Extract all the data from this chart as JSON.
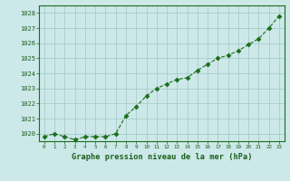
{
  "x": [
    0,
    1,
    2,
    3,
    4,
    5,
    6,
    7,
    8,
    9,
    10,
    11,
    12,
    13,
    14,
    15,
    16,
    17,
    18,
    19,
    20,
    21,
    22,
    23
  ],
  "y": [
    1019.8,
    1020.0,
    1019.8,
    1019.6,
    1019.8,
    1019.8,
    1019.8,
    1020.0,
    1021.2,
    1021.8,
    1022.5,
    1023.0,
    1023.3,
    1023.6,
    1023.7,
    1024.2,
    1024.6,
    1025.0,
    1025.2,
    1025.5,
    1025.9,
    1026.3,
    1027.0,
    1027.8
  ],
  "ylim": [
    1019.5,
    1028.5
  ],
  "yticks": [
    1020,
    1021,
    1022,
    1023,
    1024,
    1025,
    1026,
    1027,
    1028
  ],
  "xticks": [
    0,
    1,
    2,
    3,
    4,
    5,
    6,
    7,
    8,
    9,
    10,
    11,
    12,
    13,
    14,
    15,
    16,
    17,
    18,
    19,
    20,
    21,
    22,
    23
  ],
  "xlabel": "Graphe pression niveau de la mer (hPa)",
  "line_color": "#1a6e1a",
  "marker": "D",
  "marker_size": 2.5,
  "bg_color": "#cce8e8",
  "grid_color": "#aacccc",
  "label_color": "#1a5e1a",
  "tick_color": "#1a5e1a",
  "border_color": "#1a6e1a"
}
